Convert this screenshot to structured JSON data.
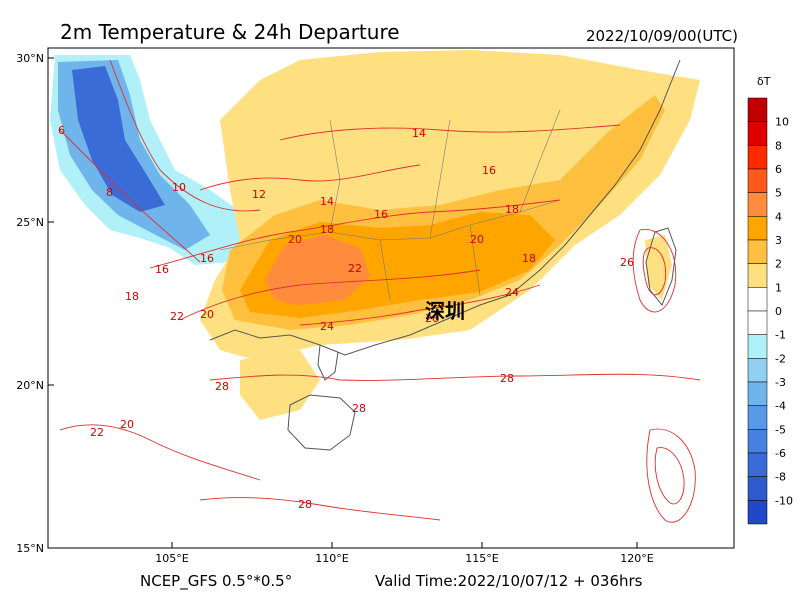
{
  "title": "2m Temperature & 24h Departure",
  "timestamp": "2022/10/09/00(UTC)",
  "footer": {
    "model": "NCEP_GFS 0.5°*0.5°",
    "valid_time": "Valid Time:2022/10/07/12 + 036hrs"
  },
  "map": {
    "lon_ticks": [
      "105°E",
      "110°E",
      "115°E",
      "120°E"
    ],
    "lat_ticks": [
      "30°N",
      "25°N",
      "20°N",
      "15°N"
    ],
    "city_label": "深圳",
    "contour_labels": [
      "6",
      "8",
      "10",
      "12",
      "14",
      "14",
      "16",
      "16",
      "16",
      "16",
      "18",
      "18",
      "18",
      "18",
      "20",
      "20",
      "20",
      "20",
      "22",
      "22",
      "22",
      "24",
      "24",
      "26",
      "26",
      "28",
      "28",
      "28",
      "28"
    ]
  },
  "colorbar": {
    "title": "δT",
    "levels": [
      "10",
      "8",
      "6",
      "5",
      "4",
      "3",
      "2",
      "1",
      "0",
      "-1",
      "-2",
      "-3",
      "-4",
      "-5",
      "-6",
      "-8",
      "-10"
    ],
    "colors": [
      "#c00000",
      "#e00000",
      "#ff2a00",
      "#ff5a1e",
      "#ff8c3c",
      "#ffa500",
      "#ffc040",
      "#ffe080",
      "#ffffff",
      "#ffffff",
      "#b0f0f8",
      "#90d0f0",
      "#70b4ec",
      "#5898e8",
      "#4880e0",
      "#3a6cd8",
      "#2e5ad0",
      "#2048c8"
    ]
  }
}
